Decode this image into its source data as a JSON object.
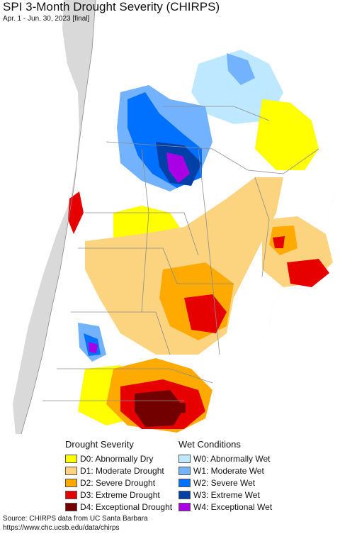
{
  "header": {
    "title": "SPI 3-Month Drought Severity (CHIRPS)",
    "subtitle": "Apr. 1 - Jun. 30, 2023 [final]"
  },
  "legend": {
    "drought_title": "Drought Severity",
    "wet_title": "Wet Conditions",
    "drought": [
      {
        "label": "D0: Abnormally Dry",
        "color": "#ffff00"
      },
      {
        "label": "D1: Moderate Drought",
        "color": "#fcd37f"
      },
      {
        "label": "D2: Severe Drought",
        "color": "#ffaa00"
      },
      {
        "label": "D3: Extreme Drought",
        "color": "#e60000"
      },
      {
        "label": "D4: Exceptional Drought",
        "color": "#730000"
      }
    ],
    "wet": [
      {
        "label": "W0: Abnormally Wet",
        "color": "#bee8ff"
      },
      {
        "label": "W1: Moderate Wet",
        "color": "#73b2ff"
      },
      {
        "label": "W2: Severe Wet",
        "color": "#0070ff"
      },
      {
        "label": "W3: Extreme Wet",
        "color": "#0040a8"
      },
      {
        "label": "W4: Exceptional Wet",
        "color": "#a900e6"
      }
    ]
  },
  "footer": {
    "source": "Source: CHIRPS data from UC Santa Barbara",
    "url": "https://www.chc.ucsb.edu/data/chirps"
  },
  "colors": {
    "ocean": "#ffffff",
    "other_land": "#d9d9d9",
    "neutral": "#ffffff",
    "boundary": "#8c8c8c"
  }
}
